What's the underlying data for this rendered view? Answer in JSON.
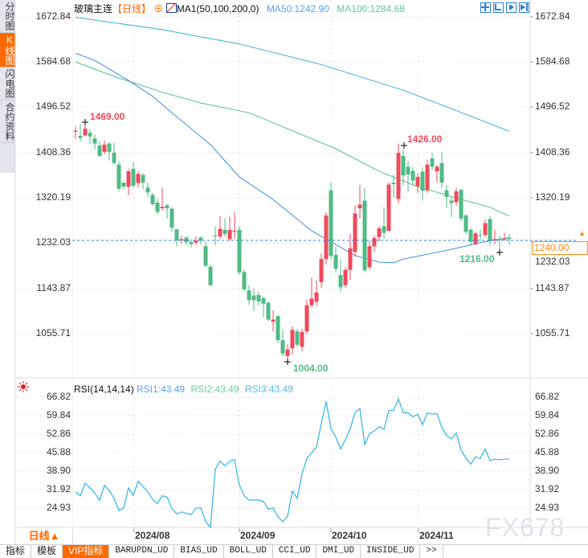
{
  "side_tabs": [
    "分时图",
    "K线图",
    "闪电图",
    "合约资料"
  ],
  "side_active": 1,
  "header": {
    "symbol": "玻璃主连",
    "period": "【日线】",
    "indicator": "MA1(50,100,200,0)",
    "ma50": "MA50:1242.90",
    "ma100": "MA100:1284.68",
    "icons": [
      "crosshair-icon",
      "zoom-range-icon",
      "play-forward-icon",
      "jump-end-icon"
    ]
  },
  "colors": {
    "up": "#ee4b5c",
    "down": "#4fbb85",
    "ma50": "#3b8ee8",
    "ma100": "#4cc289",
    "ma200": "#3aa9e0",
    "rsi": "#2fb3e8",
    "accent": "#ff6a00",
    "grid": "#e3e3e3"
  },
  "price_axis": [
    "1672.84",
    "1584.68",
    "1496.52",
    "1408.36",
    "1320.19",
    "1232.03",
    "1143.87",
    "1055.71"
  ],
  "current_price": "1240.00",
  "annotations": {
    "high1": "1469.00",
    "high2": "1426.00",
    "low1": "1004.00",
    "low2": "1216.00"
  },
  "rsi": {
    "title": "RSI(14,14,14)",
    "rsi1": "RSI1:43.49",
    "rsi2": "RSI2:43.49",
    "rsi3": "RSI3:43.49",
    "axis": [
      "66.82",
      "59.84",
      "52.86",
      "45.88",
      "38.90",
      "31.92",
      "24.93"
    ]
  },
  "x_axis": {
    "period_button": "日线▲",
    "labels": [
      "2024/08",
      "2024/09",
      "2024/10",
      "2024/11"
    ]
  },
  "watermark": "FX678",
  "toolbar": [
    "指标",
    "模板",
    "VIP指标",
    "BARUPDN_UD",
    "BIAS_UD",
    "BOLL_UD",
    "CCI_UD",
    "DMI_UD",
    "INSIDE_UD",
    ">>"
  ],
  "toolbar_active": 2,
  "chart_data": {
    "type": "candlestick",
    "price_range": [
      1004,
      1672.84
    ],
    "ohlc": [
      [
        1449,
        1460,
        1435,
        1451
      ],
      [
        1441,
        1463,
        1430,
        1437
      ],
      [
        1442,
        1469,
        1440,
        1455
      ],
      [
        1447,
        1453,
        1425,
        1440
      ],
      [
        1436,
        1444,
        1415,
        1426
      ],
      [
        1422,
        1430,
        1400,
        1402
      ],
      [
        1410,
        1432,
        1405,
        1424
      ],
      [
        1426,
        1428,
        1393,
        1410
      ],
      [
        1408,
        1428,
        1384,
        1388
      ],
      [
        1385,
        1392,
        1333,
        1338
      ],
      [
        1350,
        1350,
        1337,
        1342
      ],
      [
        1342,
        1377,
        1325,
        1372
      ],
      [
        1377,
        1390,
        1340,
        1344
      ],
      [
        1349,
        1372,
        1340,
        1367
      ],
      [
        1365,
        1368,
        1337,
        1350
      ],
      [
        1340,
        1350,
        1322,
        1331
      ],
      [
        1326,
        1330,
        1305,
        1308
      ],
      [
        1311,
        1318,
        1288,
        1293
      ],
      [
        1300,
        1340,
        1296,
        1303
      ],
      [
        1306,
        1308,
        1280,
        1300
      ],
      [
        1299,
        1302,
        1255,
        1262
      ],
      [
        1259,
        1260,
        1226,
        1237
      ],
      [
        1238,
        1247,
        1230,
        1240
      ],
      [
        1243,
        1245,
        1228,
        1234
      ],
      [
        1234,
        1240,
        1224,
        1230
      ],
      [
        1233,
        1245,
        1228,
        1237
      ],
      [
        1243,
        1245,
        1230,
        1237
      ],
      [
        1226,
        1235,
        1185,
        1188
      ],
      [
        1186,
        1190,
        1148,
        1150
      ],
      [
        1247,
        1265,
        1228,
        1246
      ],
      [
        1245,
        1285,
        1240,
        1260
      ],
      [
        1258,
        1280,
        1245,
        1250
      ],
      [
        1240,
        1283,
        1237,
        1258
      ],
      [
        1255,
        1292,
        1240,
        1256
      ],
      [
        1258,
        1265,
        1170,
        1175
      ],
      [
        1176,
        1180,
        1138,
        1142
      ],
      [
        1140,
        1150,
        1112,
        1121
      ],
      [
        1130,
        1143,
        1100,
        1121
      ],
      [
        1131,
        1138,
        1110,
        1118
      ],
      [
        1125,
        1126,
        1088,
        1114
      ],
      [
        1116,
        1118,
        1080,
        1083
      ],
      [
        1079,
        1101,
        1060,
        1083
      ],
      [
        1090,
        1092,
        1038,
        1043
      ],
      [
        1043,
        1063,
        1012,
        1017
      ],
      [
        1012,
        1035,
        1004,
        1025
      ],
      [
        1027,
        1070,
        1015,
        1063
      ],
      [
        1060,
        1065,
        1030,
        1034
      ],
      [
        1030,
        1065,
        1021,
        1059
      ],
      [
        1060,
        1122,
        1055,
        1111
      ],
      [
        1111,
        1165,
        1108,
        1124
      ],
      [
        1118,
        1160,
        1110,
        1136
      ],
      [
        1156,
        1212,
        1145,
        1201
      ],
      [
        1201,
        1292,
        1190,
        1286
      ],
      [
        1335,
        1350,
        1200,
        1207
      ],
      [
        1209,
        1225,
        1175,
        1182
      ],
      [
        1170,
        1200,
        1138,
        1146
      ],
      [
        1150,
        1185,
        1145,
        1180
      ],
      [
        1180,
        1250,
        1160,
        1222
      ],
      [
        1215,
        1305,
        1205,
        1290
      ],
      [
        1300,
        1345,
        1280,
        1307
      ],
      [
        1315,
        1340,
        1175,
        1179
      ],
      [
        1185,
        1237,
        1180,
        1226
      ],
      [
        1226,
        1248,
        1215,
        1242
      ],
      [
        1244,
        1265,
        1235,
        1261
      ],
      [
        1265,
        1302,
        1240,
        1252
      ],
      [
        1256,
        1350,
        1255,
        1346
      ],
      [
        1350,
        1365,
        1320,
        1347
      ],
      [
        1318,
        1426,
        1310,
        1408
      ],
      [
        1402,
        1415,
        1345,
        1364
      ],
      [
        1381,
        1392,
        1332,
        1366
      ],
      [
        1373,
        1380,
        1345,
        1354
      ],
      [
        1343,
        1368,
        1330,
        1361
      ],
      [
        1371,
        1380,
        1315,
        1334
      ],
      [
        1335,
        1395,
        1330,
        1385
      ],
      [
        1397,
        1408,
        1375,
        1381
      ],
      [
        1372,
        1384,
        1350,
        1381
      ],
      [
        1388,
        1410,
        1340,
        1350
      ],
      [
        1335,
        1345,
        1300,
        1322
      ],
      [
        1315,
        1322,
        1282,
        1310
      ],
      [
        1312,
        1340,
        1305,
        1333
      ],
      [
        1336,
        1338,
        1275,
        1280
      ],
      [
        1286,
        1288,
        1250,
        1254
      ],
      [
        1258,
        1262,
        1226,
        1235
      ],
      [
        1230,
        1255,
        1228,
        1251
      ],
      [
        1248,
        1258,
        1235,
        1247
      ],
      [
        1248,
        1278,
        1244,
        1271
      ],
      [
        1279,
        1285,
        1228,
        1237
      ],
      [
        1238,
        1258,
        1230,
        1240
      ],
      [
        1240,
        1247,
        1216,
        1239
      ],
      [
        1239,
        1252,
        1236,
        1241
      ],
      [
        1242,
        1250,
        1228,
        1240
      ]
    ],
    "ma50": [
      [
        0,
        1602
      ],
      [
        4,
        1588
      ],
      [
        11,
        1549
      ],
      [
        16,
        1518
      ],
      [
        20,
        1486
      ],
      [
        28,
        1424
      ],
      [
        34,
        1361
      ],
      [
        41,
        1317
      ],
      [
        49,
        1256
      ],
      [
        58,
        1208
      ],
      [
        63,
        1195
      ],
      [
        66,
        1194
      ],
      [
        68,
        1201
      ],
      [
        78,
        1220
      ],
      [
        84,
        1233
      ],
      [
        90,
        1242.9
      ]
    ],
    "ma100": [
      [
        0,
        1585
      ],
      [
        8,
        1557
      ],
      [
        18,
        1526
      ],
      [
        26,
        1505
      ],
      [
        36,
        1486
      ],
      [
        44,
        1455
      ],
      [
        54,
        1416
      ],
      [
        63,
        1372
      ],
      [
        71,
        1342
      ],
      [
        79,
        1320
      ],
      [
        86,
        1302
      ],
      [
        90,
        1284.68
      ]
    ],
    "ma200": [
      [
        0,
        1672
      ],
      [
        18,
        1648
      ],
      [
        34,
        1620
      ],
      [
        51,
        1580
      ],
      [
        68,
        1530
      ],
      [
        78,
        1494
      ],
      [
        90,
        1450
      ]
    ],
    "rsi_range": [
      24.93,
      66.82
    ],
    "rsi_values": [
      31.1,
      29.6,
      34.4,
      32.6,
      30.6,
      27.9,
      33.5,
      31.6,
      28.6,
      24.0,
      25.0,
      32.6,
      29.8,
      35.1,
      33.1,
      31.1,
      28.3,
      26.7,
      29.6,
      29.1,
      24.7,
      22.8,
      23.5,
      23.0,
      22.5,
      25.0,
      25.0,
      20.0,
      17.6,
      39.7,
      42.7,
      40.9,
      42.7,
      43.2,
      33.6,
      29.6,
      28.0,
      28.0,
      28.0,
      27.5,
      24.5,
      25.0,
      21.7,
      19.8,
      21.8,
      31.4,
      28.6,
      37.9,
      43.7,
      45.8,
      48.0,
      56.9,
      65.2,
      54.9,
      51.8,
      47.3,
      50.8,
      54.9,
      61.1,
      62.5,
      49.0,
      53.1,
      54.1,
      55.7,
      54.7,
      61.7,
      61.9,
      66.2,
      60.9,
      60.9,
      59.4,
      60.4,
      56.4,
      60.9,
      60.4,
      60.6,
      55.4,
      52.3,
      51.0,
      53.4,
      46.8,
      43.9,
      41.5,
      44.3,
      43.7,
      47.3,
      42.9,
      43.4,
      43.2,
      43.4,
      43.49
    ]
  }
}
